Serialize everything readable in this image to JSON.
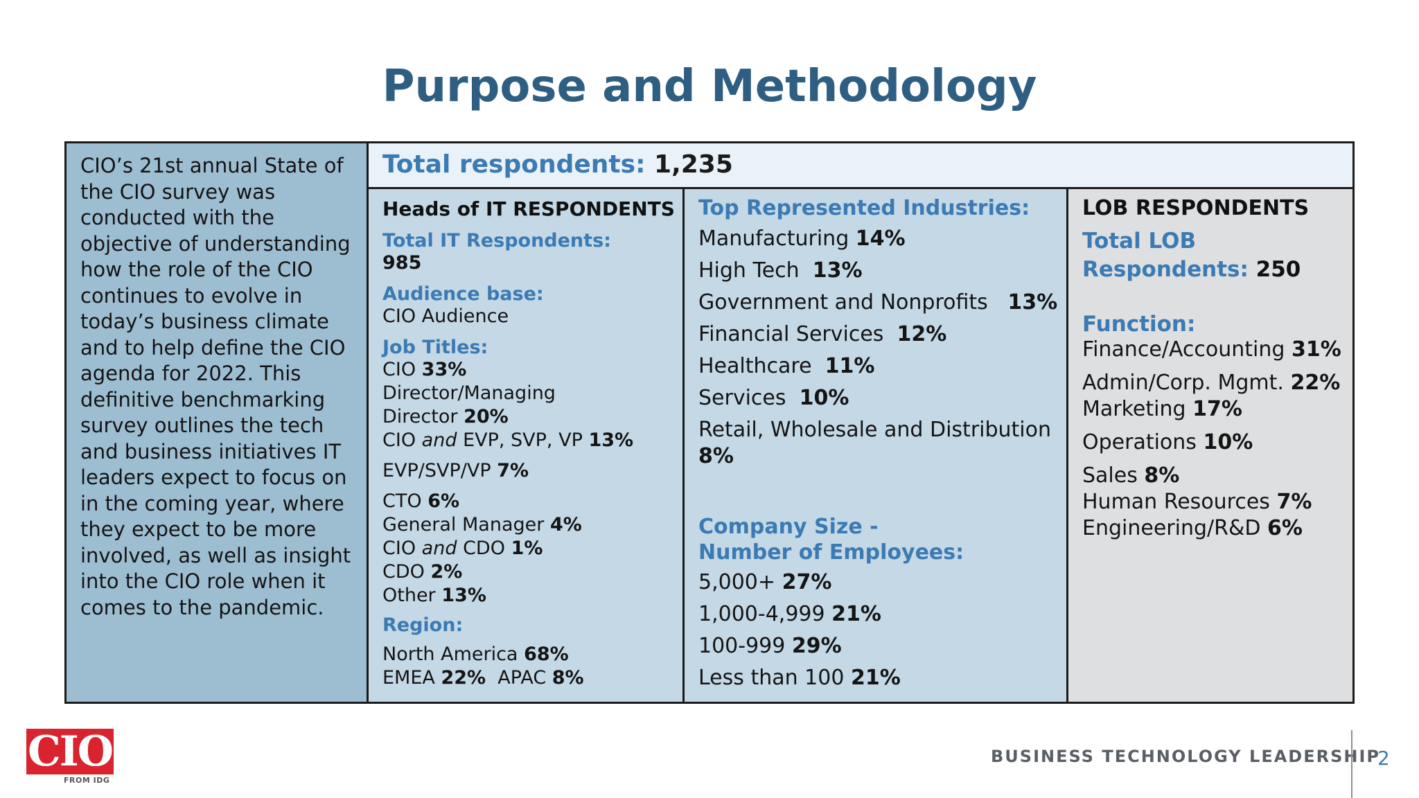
{
  "title": "Purpose and Methodology",
  "intro": {
    "text": "CIO’s 21st annual State of the CIO survey was conducted with the objective of understanding how the role of the CIO continues to evolve in today’s business climate and to help define the CIO agenda for 2022. This definitive benchmarking survey outlines the tech and business initiatives IT leaders expect to focus on in the coming year, where they expect to be more involved, as well as insight into the CIO role when it comes to the pandemic."
  },
  "total": {
    "label": "Total respondents:",
    "value": "1,235"
  },
  "it": {
    "heading": "Heads of IT RESPONDENTS",
    "total_label": "Total IT Respondents:",
    "total_value": "985",
    "audience_label": "Audience base:",
    "audience_value": "CIO Audience",
    "job_label": "Job Titles:",
    "jobs": [
      {
        "name": "CIO",
        "pct": "33%"
      },
      {
        "name": "Director/Managing",
        "pct": ""
      },
      {
        "name": "Director",
        "pct": "20%"
      },
      {
        "pre": "CIO",
        "and": "and",
        "post": "EVP, SVP, VP",
        "pct": "13%"
      },
      {
        "name": "EVP/SVP/VP",
        "pct": "7%"
      },
      {
        "name": "CTO",
        "pct": "6%"
      },
      {
        "name": "General Manager",
        "pct": "4%"
      },
      {
        "pre": "CIO",
        "and": "and",
        "post": "CDO",
        "pct": "1%"
      },
      {
        "name": "CDO",
        "pct": "2%"
      },
      {
        "name": "Other",
        "pct": "13%"
      }
    ],
    "region_label": "Region:",
    "regions": [
      {
        "name": "North America",
        "pct": "68%"
      },
      {
        "name": "EMEA",
        "pct": "22%"
      },
      {
        "name": "APAC",
        "pct": "8%"
      }
    ]
  },
  "industries": {
    "label": "Top Represented Industries:",
    "items": [
      {
        "name": "Manufacturing",
        "pct": "14%"
      },
      {
        "name": "High Tech",
        "pct": "13%"
      },
      {
        "name": "Government and Nonprofits",
        "pct": "13%"
      },
      {
        "name": "Financial Services",
        "pct": "12%"
      },
      {
        "name": "Healthcare",
        "pct": "11%"
      },
      {
        "name": "Services",
        "pct": "10%"
      },
      {
        "name": "Retail, Wholesale and Distribution",
        "pct": "8%"
      }
    ],
    "size_label_1": "Company Size -",
    "size_label_2": "Number of Employees:",
    "sizes": [
      {
        "name": "5,000+",
        "pct": "27%"
      },
      {
        "name": "1,000-4,999",
        "pct": "21%"
      },
      {
        "name": "100-999",
        "pct": "29%"
      },
      {
        "name": "Less than 100",
        "pct": "21%"
      }
    ]
  },
  "lob": {
    "heading": "LOB RESPONDENTS",
    "total_label_1": "Total LOB",
    "total_label_2": "Respondents:",
    "total_value": "250",
    "function_label": "Function:",
    "functions": [
      {
        "name": "Finance/Accounting",
        "pct": "31%"
      },
      {
        "name": "Admin/Corp. Mgmt.",
        "pct": "22%"
      },
      {
        "name": "Marketing",
        "pct": "17%"
      },
      {
        "name": "Operations",
        "pct": "10%"
      },
      {
        "name": "Sales",
        "pct": "8%"
      },
      {
        "name": "Human Resources",
        "pct": "7%"
      },
      {
        "name": "Engineering/R&D",
        "pct": "6%"
      }
    ]
  },
  "footer": {
    "logo": "CIO",
    "logo_sub": "FROM IDG",
    "tagline": "BUSINESS TECHNOLOGY LEADERSHIP",
    "page": "2"
  }
}
